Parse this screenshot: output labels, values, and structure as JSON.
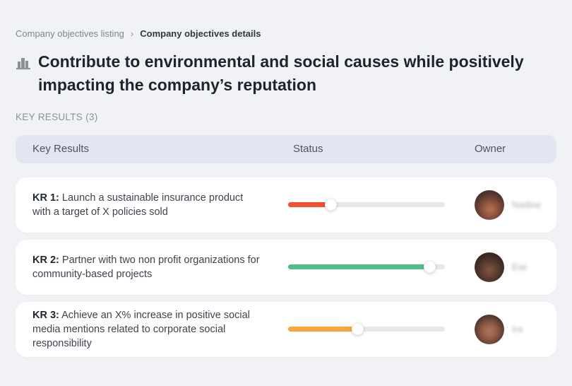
{
  "breadcrumb": {
    "parent": "Company objectives listing",
    "separator": "›",
    "current": "Company objectives details"
  },
  "objective": {
    "icon": "building-icon",
    "title": "Contribute to environmental and social causes while positively impacting the company’s reputation"
  },
  "section": {
    "label": "KEY RESULTS (3)"
  },
  "table": {
    "headers": [
      "Key Results",
      "Status",
      "Owner"
    ],
    "rows": [
      {
        "kr_label": "KR 1:",
        "description": "Launch a sustainable insurance product with a target of X policies sold",
        "progress_percent": 27,
        "progress_color": "#f0512f",
        "owner_name": "Nadine"
      },
      {
        "kr_label": "KR 2:",
        "description": "Partner with two non profit organizations for community-based projects",
        "progress_percent": 90,
        "progress_color": "#52bd8a",
        "owner_name": "Ewi",
        "note": ""
      },
      {
        "kr_label": "KR 3:",
        "description": "Achieve an X% increase in positive social media mentions related to corporate social responsibility",
        "progress_percent": 44,
        "progress_color": "#f9a53c",
        "owner_name": "Ira"
      }
    ]
  },
  "colors": {
    "page_background": "#f1f2f5",
    "header_background": "#e3e6f0",
    "status_red": "#f0512f",
    "status_green": "#52bd8a",
    "status_orange": "#f9a53c"
  }
}
